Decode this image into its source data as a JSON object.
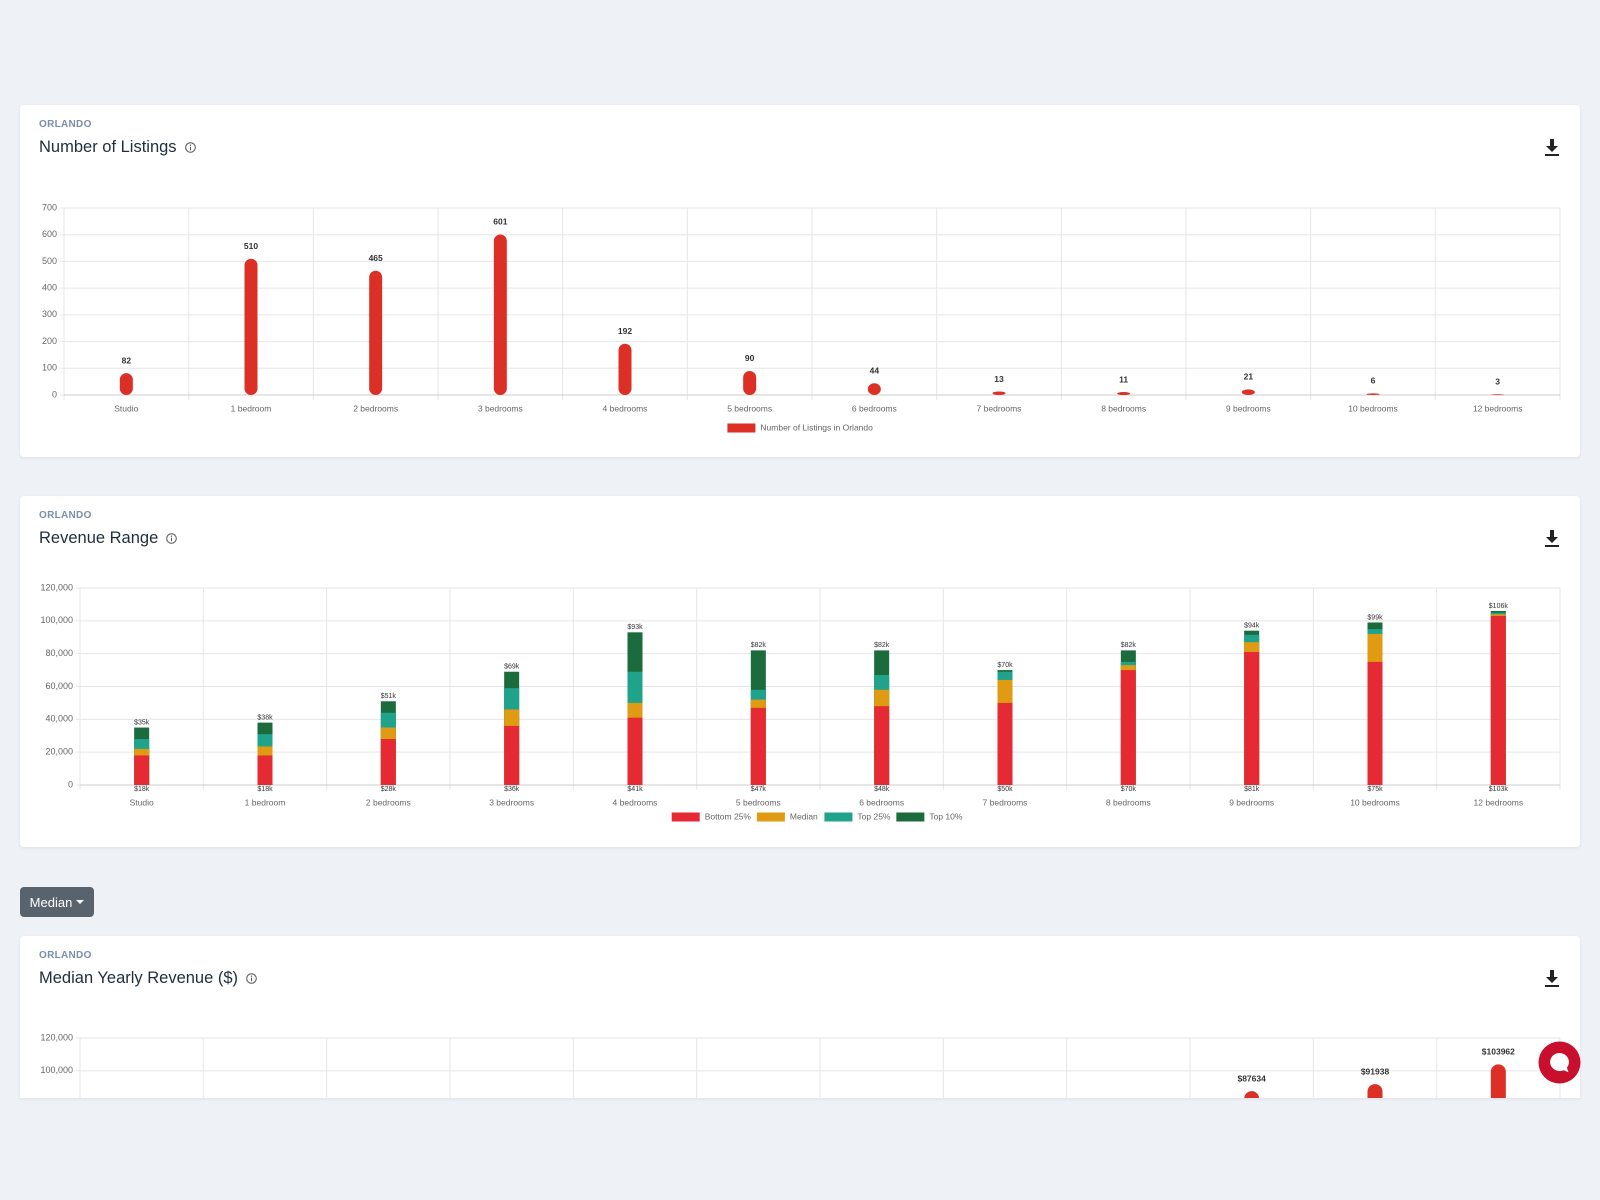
{
  "chart_data": [
    {
      "type": "bar",
      "eyebrow": "ORLANDO",
      "title": "Number of Listings",
      "categories": [
        "Studio",
        "1 bedroom",
        "2 bedrooms",
        "3 bedrooms",
        "4 bedrooms",
        "5 bedrooms",
        "6 bedrooms",
        "7 bedrooms",
        "8 bedrooms",
        "9 bedrooms",
        "10 bedrooms",
        "12 bedrooms"
      ],
      "series": [
        {
          "name": "Number of Listings in Orlando",
          "color": "#dc2f26",
          "values": [
            82,
            510,
            465,
            601,
            192,
            90,
            44,
            13,
            11,
            21,
            6,
            3
          ]
        }
      ],
      "ylim": [
        0,
        700
      ],
      "yticks": [
        0,
        100,
        200,
        300,
        400,
        500,
        600,
        700
      ],
      "grid": true,
      "legend": "bottom",
      "rounded": true
    },
    {
      "type": "bar",
      "eyebrow": "ORLANDO",
      "title": "Revenue Range",
      "categories": [
        "Studio",
        "1 bedroom",
        "2 bedrooms",
        "3 bedrooms",
        "4 bedrooms",
        "5 bedrooms",
        "6 bedrooms",
        "7 bedrooms",
        "8 bedrooms",
        "9 bedrooms",
        "10 bedrooms",
        "12 bedrooms"
      ],
      "series": [
        {
          "name": "Bottom 25%",
          "color": "#e52a33",
          "values": [
            18000,
            18000,
            28000,
            36000,
            41000,
            47000,
            48000,
            50000,
            70000,
            81000,
            75000,
            103000
          ],
          "value_labels": [
            "$18k",
            "$18k",
            "$28k",
            "$36k",
            "$41k",
            "$47k",
            "$48k",
            "$50k",
            "$70k",
            "$81k",
            "$75k",
            "$103k"
          ]
        },
        {
          "name": "Median",
          "color": "#e09b12",
          "values": [
            22000,
            23500,
            35000,
            46000,
            50000,
            52000,
            58000,
            64000,
            73000,
            87000,
            92000,
            104000
          ]
        },
        {
          "name": "Top 25%",
          "color": "#1fa38a",
          "values": [
            28000,
            31000,
            44000,
            59000,
            69000,
            58000,
            67000,
            69000,
            75000,
            91500,
            95000,
            105000
          ]
        },
        {
          "name": "Top 10%",
          "color": "#1c6b3c",
          "values": [
            35000,
            38000,
            51000,
            69000,
            93000,
            82000,
            82000,
            70000,
            82000,
            94000,
            99000,
            106000
          ],
          "value_labels": [
            "$35k",
            "$38k",
            "$51k",
            "$69k",
            "$93k",
            "$82k",
            "$82k",
            "$70k",
            "$82k",
            "$94k",
            "$99k",
            "$106k"
          ]
        }
      ],
      "ylim": [
        0,
        120000
      ],
      "yticks": [
        0,
        {
          "value": 20000,
          "label": "20,000"
        },
        {
          "value": 40000,
          "label": "40,000"
        },
        {
          "value": 60000,
          "label": "60,000"
        },
        {
          "value": 80000,
          "label": "80,000"
        },
        {
          "value": 100000,
          "label": "100,000"
        },
        {
          "value": 120000,
          "label": "120,000"
        }
      ],
      "grid": true,
      "legend": "bottom",
      "rounded": false
    },
    {
      "type": "bar",
      "eyebrow": "ORLANDO",
      "title": "Median Yearly Revenue ($)",
      "values": [
        null,
        null,
        null,
        null,
        null,
        null,
        null,
        null,
        null,
        87634,
        91938,
        103962
      ],
      "value_labels": [
        null,
        null,
        null,
        null,
        null,
        null,
        null,
        null,
        null,
        "$87634",
        "$91938",
        "$103962"
      ],
      "color": "#dc2f26",
      "ylim": [
        0,
        120000
      ],
      "yticks": [
        {
          "value": 100000,
          "label": "100,000"
        },
        {
          "value": 120000,
          "label": "120,000"
        }
      ],
      "grid": true,
      "rounded": true
    }
  ],
  "controls": {
    "metric_button": "Median"
  }
}
